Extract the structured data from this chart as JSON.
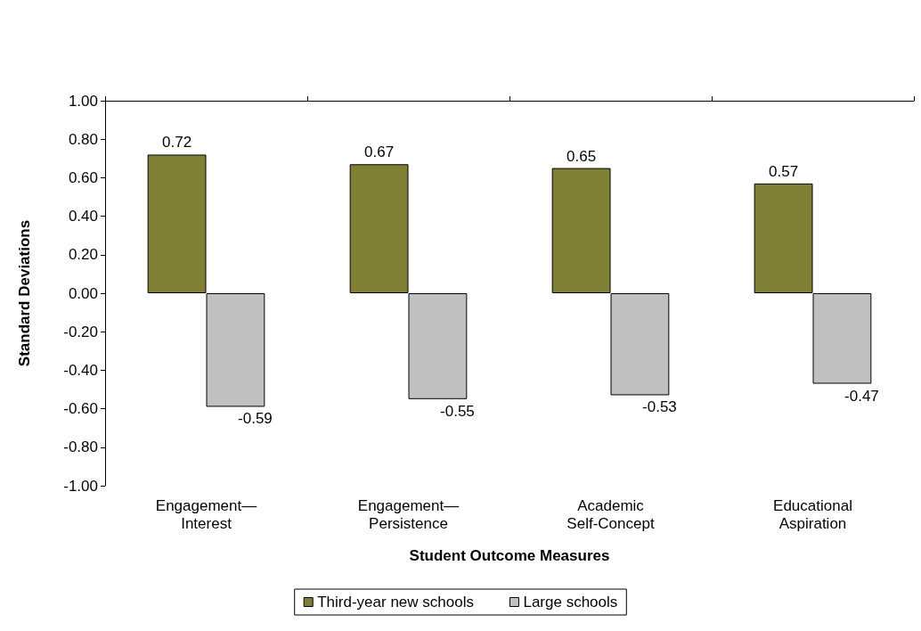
{
  "chart_data": {
    "type": "bar",
    "xlabel": "Student Outcome Measures",
    "ylabel": "Standard Deviations",
    "categories": [
      "Engagement—\nInterest",
      "Engagement—\nPersistence",
      "Academic\nSelf-Concept",
      "Educational\nAspiration"
    ],
    "series": [
      {
        "name": "Third-year new schools",
        "color": "#7f7f35",
        "values": [
          0.72,
          0.67,
          0.65,
          0.57
        ]
      },
      {
        "name": "Large schools",
        "color": "#c0c0c0",
        "values": [
          -0.59,
          -0.55,
          -0.53,
          -0.47
        ]
      }
    ],
    "ylim": [
      -1,
      1
    ],
    "yticks": [
      {
        "value": -1,
        "label": "-1.00"
      },
      {
        "value": -0.8,
        "label": "-0.80"
      },
      {
        "value": -0.6,
        "label": "-0.60"
      },
      {
        "value": -0.4,
        "label": "-0.40"
      },
      {
        "value": -0.2,
        "label": "-0.20"
      },
      {
        "value": 0,
        "label": "0.00"
      },
      {
        "value": 0.2,
        "label": "0.20"
      },
      {
        "value": 0.4,
        "label": "0.40"
      },
      {
        "value": 0.6,
        "label": "0.60"
      },
      {
        "value": 0.8,
        "label": "0.80"
      },
      {
        "value": 1,
        "label": "1.00"
      }
    ],
    "data_labels": true,
    "grid": false,
    "legend": "bottom"
  }
}
